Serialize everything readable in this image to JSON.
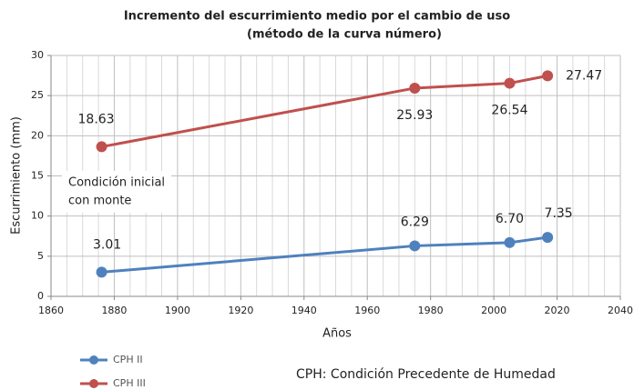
{
  "chart_data": {
    "type": "line",
    "title": [
      "Incremento del  escurrimiento medio por el cambio de uso",
      "(método de la curva número)"
    ],
    "x_label": "Años",
    "y_label": "Escurrimiento (mm)",
    "x": [
      1876,
      1975,
      2005,
      2017
    ],
    "series": [
      {
        "name": "CPH II",
        "color": "#4f81bd",
        "values": [
          3.01,
          6.29,
          6.7,
          7.35
        ],
        "value_labels": [
          "3.01",
          "6.29",
          "6.70",
          "7.35"
        ]
      },
      {
        "name": "CPH III",
        "color": "#c0504d",
        "values": [
          18.63,
          25.93,
          26.54,
          27.47
        ],
        "value_labels": [
          "18.63",
          "25.93",
          "26.54",
          "27.47"
        ]
      }
    ],
    "xlim": [
      1860,
      2040
    ],
    "xticks": [
      1860,
      1880,
      1900,
      1920,
      1940,
      1960,
      1980,
      2000,
      2020,
      2040
    ],
    "ylim": [
      0,
      30
    ],
    "yticks": [
      0,
      5,
      10,
      15,
      20,
      25,
      30
    ],
    "grid": true,
    "legend": "bottom-left",
    "annotation": [
      "Condición  inicial",
      "con monte"
    ],
    "note": "CPH: Condición Precedente de Humedad"
  }
}
